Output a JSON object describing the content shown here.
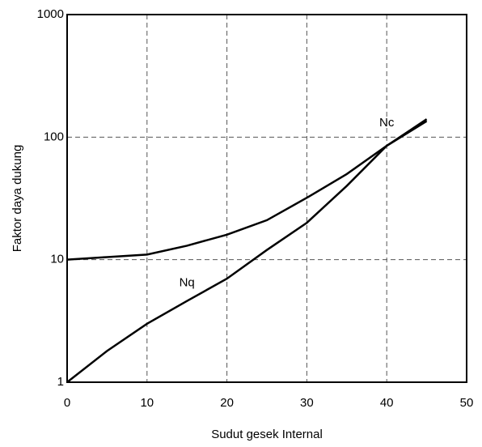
{
  "chart_data": {
    "type": "line",
    "x_label": "Sudut gesek Internal",
    "y_label": "Faktor daya dukung",
    "x": [
      0,
      5,
      10,
      15,
      20,
      25,
      30,
      35,
      40,
      45
    ],
    "series": [
      {
        "name": "Nc",
        "color": "#000000",
        "values": [
          10,
          10.5,
          11,
          13,
          16,
          21,
          32,
          50,
          85,
          140
        ]
      },
      {
        "name": "Nq",
        "color": "#000000",
        "values": [
          1,
          1.8,
          3,
          4.6,
          7,
          12,
          20,
          40,
          85,
          135
        ]
      }
    ],
    "xlim": [
      0,
      50
    ],
    "xticks": [
      0,
      10,
      20,
      30,
      40,
      50
    ],
    "ylim": [
      1,
      1000
    ],
    "yticks": [
      1,
      10,
      100,
      1000
    ],
    "log_y": true,
    "grid": true
  }
}
